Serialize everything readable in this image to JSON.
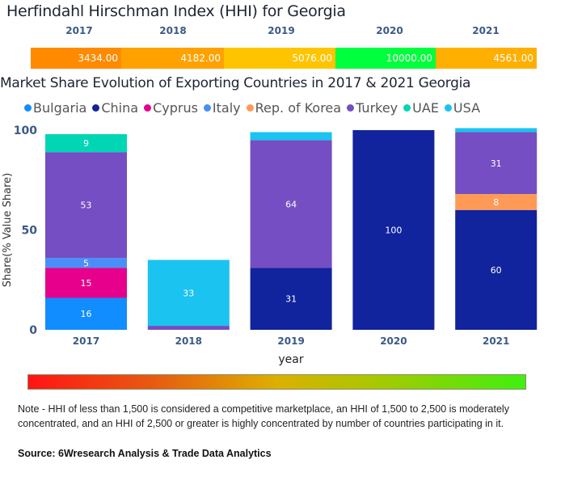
{
  "hhi": {
    "title": "Herfindahl Hirschman Index (HHI) for Georgia",
    "cells": [
      {
        "year": "2017",
        "value": "3434.00",
        "color": "#ff8a00"
      },
      {
        "year": "2018",
        "value": "4182.00",
        "color": "#ffa200"
      },
      {
        "year": "2019",
        "value": "5076.00",
        "color": "#ffc400"
      },
      {
        "year": "2020",
        "value": "10000.00",
        "color": "#00ff3c"
      },
      {
        "year": "2021",
        "value": "4561.00",
        "color": "#ffaf00"
      }
    ]
  },
  "chart_data": {
    "type": "bar",
    "stacked": true,
    "title": "Market Share Evolution of Exporting Countries in 2017 & 2021 Georgia",
    "xlabel": "year",
    "ylabel": "Share(% Value Share)",
    "ylim": [
      0,
      100
    ],
    "yticks": [
      "0",
      "50",
      "100"
    ],
    "categories": [
      "2017",
      "2018",
      "2019",
      "2020",
      "2021"
    ],
    "legend_position": "top",
    "series": [
      {
        "name": "Bulgaria",
        "color": "#118dff",
        "values": [
          16,
          0,
          0,
          0,
          0
        ],
        "labels": [
          "16",
          "",
          "",
          "",
          ""
        ]
      },
      {
        "name": "China",
        "color": "#12239e",
        "values": [
          0,
          0,
          31,
          100,
          60
        ],
        "labels": [
          "",
          "",
          "31",
          "100",
          "60"
        ]
      },
      {
        "name": "Cyprus",
        "color": "#e6008b",
        "values": [
          15,
          0,
          0,
          0,
          0
        ],
        "labels": [
          "15",
          "",
          "",
          "",
          ""
        ]
      },
      {
        "name": "Italy",
        "color": "#4a8ff7",
        "values": [
          5,
          0,
          0,
          0,
          0
        ],
        "labels": [
          "5",
          "",
          "",
          "",
          ""
        ]
      },
      {
        "name": "Rep. of Korea",
        "color": "#fe9a56",
        "values": [
          0,
          0,
          0,
          0,
          8
        ],
        "labels": [
          "",
          "",
          "",
          "",
          "8"
        ]
      },
      {
        "name": "Turkey",
        "color": "#744ec2",
        "values": [
          53,
          2,
          64,
          0,
          31
        ],
        "labels": [
          "53",
          "",
          "64",
          "",
          "31"
        ]
      },
      {
        "name": "UAE",
        "color": "#00d6b4",
        "values": [
          9,
          0,
          0,
          0,
          0
        ],
        "labels": [
          "9",
          "",
          "",
          "",
          ""
        ]
      },
      {
        "name": "USA",
        "color": "#1ac3f0",
        "values": [
          0,
          33,
          4,
          0,
          2
        ],
        "labels": [
          "",
          "33",
          "",
          "",
          ""
        ]
      }
    ]
  },
  "scale": {
    "colors": [
      "#ff1414",
      "#3ff010"
    ]
  },
  "note": "Note - HHI of less than 1,500 is considered a competitive marketplace, an HHI of 1,500 to 2,500 is moderately concentrated, and an HHI of 2,500 or greater is highly concentrated by number of countries participating in it.",
  "source": "Source: 6Wresearch Analysis & Trade Data Analytics"
}
